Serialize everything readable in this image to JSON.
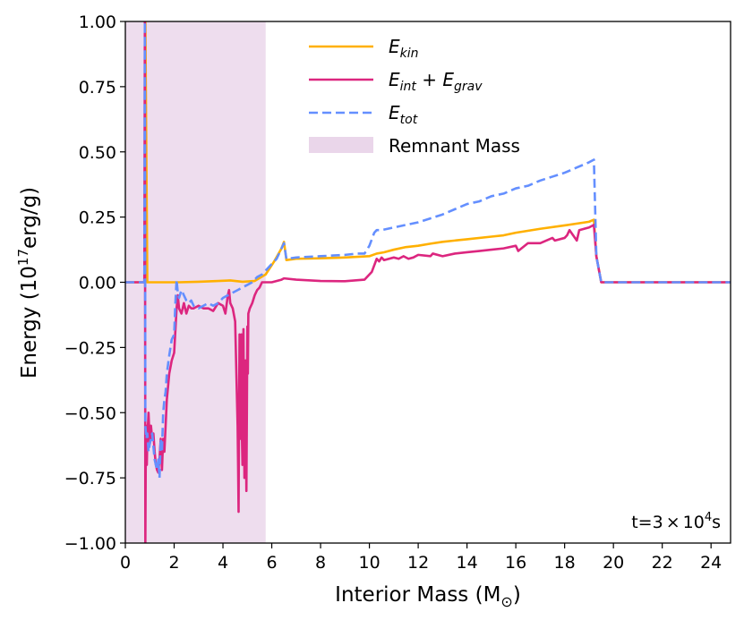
{
  "chart_data": {
    "type": "line",
    "title": "",
    "xlabel_main": "Interior Mass (M",
    "xlabel_sub": "⊙",
    "xlabel_end": ")",
    "ylabel_main": "Energy (10",
    "ylabel_sup": "17",
    "ylabel_end": "erg/g)",
    "xlim": [
      0,
      24.8
    ],
    "ylim": [
      -1.0,
      1.0
    ],
    "xticks": [
      0,
      2,
      4,
      6,
      8,
      10,
      12,
      14,
      16,
      18,
      20,
      22,
      24
    ],
    "xtick_labels": [
      "0",
      "2",
      "4",
      "6",
      "8",
      "10",
      "12",
      "14",
      "16",
      "18",
      "20",
      "22",
      "24"
    ],
    "yticks": [
      -1.0,
      -0.75,
      -0.5,
      -0.25,
      0.0,
      0.25,
      0.5,
      0.75,
      1.0
    ],
    "ytick_labels": [
      "−1.00",
      "−0.75",
      "−0.50",
      "−0.25",
      "0.00",
      "0.25",
      "0.50",
      "0.75",
      "1.00"
    ],
    "shaded_region": {
      "name": "Remnant Mass",
      "x": [
        0,
        5.75
      ],
      "color": "#e8d2e8"
    },
    "annotation": {
      "prefix": "t=3",
      "times": "×",
      "base": "10",
      "sup": "4",
      "unit": "s"
    },
    "legend": [
      {
        "key": "ekin",
        "label": "E",
        "sub": "kin",
        "suffix": "",
        "sub2": "",
        "style": "solid",
        "color": "#ffb000"
      },
      {
        "key": "eintgrav",
        "label": "E",
        "sub": "int",
        "suffix": " + E",
        "sub2": "grav",
        "style": "solid",
        "color": "#dc267f"
      },
      {
        "key": "etot",
        "label": "E",
        "sub": "tot",
        "suffix": "",
        "sub2": "",
        "style": "dashed",
        "color": "#648fff"
      },
      {
        "key": "remnant",
        "label": "Remnant Mass",
        "sub": "",
        "suffix": "",
        "sub2": "",
        "style": "patch",
        "color": "#e8d2e8"
      }
    ],
    "series": [
      {
        "name": "E_kin",
        "color": "#ffb000",
        "dash": false,
        "x": [
          0.0,
          0.78,
          0.82,
          0.9,
          1.5,
          2.2,
          3.0,
          3.8,
          4.3,
          4.8,
          5.3,
          5.75,
          6.1,
          6.4,
          6.5,
          6.6,
          7.0,
          8.0,
          9.0,
          10.0,
          10.3,
          10.6,
          11.0,
          11.5,
          12.0,
          12.5,
          13.0,
          14.0,
          15.0,
          15.5,
          16.0,
          17.0,
          18.0,
          19.0,
          19.2,
          19.3,
          19.5,
          20.0,
          24.8
        ],
        "y": [
          0.0,
          0.0,
          1.0,
          0.0,
          0.0,
          0.0,
          0.002,
          0.005,
          0.007,
          0.002,
          0.005,
          0.03,
          0.08,
          0.13,
          0.155,
          0.085,
          0.09,
          0.092,
          0.095,
          0.1,
          0.11,
          0.115,
          0.125,
          0.135,
          0.14,
          0.148,
          0.155,
          0.165,
          0.175,
          0.18,
          0.19,
          0.205,
          0.218,
          0.232,
          0.24,
          0.1,
          0.0,
          0.0,
          0.0
        ]
      },
      {
        "name": "E_int + E_grav",
        "color": "#dc267f",
        "dash": false,
        "x": [
          0.0,
          0.78,
          0.8,
          0.82,
          0.84,
          0.86,
          0.88,
          0.9,
          0.95,
          1.0,
          1.05,
          1.1,
          1.15,
          1.2,
          1.25,
          1.3,
          1.35,
          1.4,
          1.45,
          1.5,
          1.55,
          1.6,
          1.65,
          1.7,
          1.75,
          1.8,
          1.9,
          2.0,
          2.1,
          2.15,
          2.2,
          2.3,
          2.4,
          2.5,
          2.6,
          2.7,
          2.8,
          3.0,
          3.2,
          3.4,
          3.6,
          3.8,
          4.0,
          4.1,
          4.2,
          4.25,
          4.3,
          4.4,
          4.5,
          4.55,
          4.6,
          4.62,
          4.64,
          4.66,
          4.68,
          4.7,
          4.72,
          4.74,
          4.76,
          4.78,
          4.8,
          4.82,
          4.84,
          4.86,
          4.88,
          4.9,
          4.92,
          4.94,
          4.96,
          4.98,
          5.0,
          5.02,
          5.04,
          5.1,
          5.2,
          5.3,
          5.4,
          5.5,
          5.6,
          5.7,
          5.8,
          6.0,
          6.4,
          6.5,
          7.0,
          8.0,
          9.0,
          9.8,
          10.1,
          10.3,
          10.4,
          10.5,
          10.6,
          11.0,
          11.2,
          11.4,
          11.6,
          11.8,
          12.0,
          12.5,
          12.6,
          13.0,
          13.5,
          14.0,
          14.5,
          15.0,
          15.5,
          16.0,
          16.1,
          16.5,
          17.0,
          17.5,
          17.6,
          18.0,
          18.1,
          18.2,
          18.5,
          18.6,
          19.0,
          19.2,
          19.3,
          19.5,
          20.0,
          24.8
        ],
        "y": [
          0.0,
          0.0,
          1.0,
          -1.0,
          -0.6,
          -0.55,
          -0.7,
          -0.6,
          -0.5,
          -0.62,
          -0.55,
          -0.6,
          -0.58,
          -0.65,
          -0.7,
          -0.72,
          -0.73,
          -0.68,
          -0.6,
          -0.72,
          -0.6,
          -0.65,
          -0.55,
          -0.45,
          -0.4,
          -0.35,
          -0.3,
          -0.27,
          -0.1,
          -0.05,
          -0.1,
          -0.12,
          -0.08,
          -0.12,
          -0.09,
          -0.1,
          -0.1,
          -0.09,
          -0.1,
          -0.1,
          -0.11,
          -0.08,
          -0.09,
          -0.12,
          -0.05,
          -0.03,
          -0.08,
          -0.1,
          -0.15,
          -0.35,
          -0.55,
          -0.7,
          -0.88,
          -0.5,
          -0.2,
          -0.4,
          -0.6,
          -0.35,
          -0.2,
          -0.6,
          -0.7,
          -0.4,
          -0.18,
          -0.5,
          -0.75,
          -0.6,
          -0.3,
          -0.55,
          -0.8,
          -0.5,
          -0.17,
          -0.35,
          -0.12,
          -0.1,
          -0.08,
          -0.05,
          -0.03,
          -0.02,
          0.0,
          0.0,
          0.0,
          0.0,
          0.01,
          0.015,
          0.01,
          0.005,
          0.004,
          0.01,
          0.04,
          0.09,
          0.08,
          0.095,
          0.085,
          0.095,
          0.09,
          0.1,
          0.09,
          0.095,
          0.105,
          0.1,
          0.11,
          0.1,
          0.11,
          0.115,
          0.12,
          0.125,
          0.13,
          0.14,
          0.12,
          0.15,
          0.15,
          0.17,
          0.16,
          0.17,
          0.18,
          0.2,
          0.16,
          0.2,
          0.21,
          0.22,
          0.1,
          0.0,
          0.0,
          0.0
        ]
      },
      {
        "name": "E_tot",
        "color": "#648fff",
        "dash": true,
        "x": [
          0.0,
          0.78,
          0.8,
          0.82,
          0.86,
          0.9,
          0.95,
          1.0,
          1.05,
          1.1,
          1.2,
          1.3,
          1.35,
          1.4,
          1.45,
          1.5,
          1.55,
          1.6,
          1.65,
          1.7,
          1.8,
          1.9,
          2.0,
          2.05,
          2.1,
          2.15,
          2.2,
          2.3,
          2.4,
          2.5,
          2.6,
          2.7,
          2.8,
          3.0,
          3.2,
          3.4,
          3.6,
          3.8,
          4.0,
          4.2,
          4.4,
          4.6,
          4.8,
          5.0,
          5.2,
          5.4,
          5.6,
          5.8,
          6.0,
          6.2,
          6.4,
          6.5,
          6.6,
          7.0,
          8.0,
          9.0,
          9.5,
          9.8,
          10.0,
          10.2,
          10.3,
          10.5,
          11.0,
          11.5,
          12.0,
          12.5,
          13.0,
          13.5,
          14.0,
          14.5,
          15.0,
          15.5,
          16.0,
          16.5,
          17.0,
          17.5,
          18.0,
          18.5,
          19.0,
          19.2,
          19.3,
          19.5,
          20.0,
          24.8
        ],
        "y": [
          0.0,
          0.0,
          1.0,
          -0.55,
          -0.6,
          -0.58,
          -0.65,
          -0.62,
          -0.6,
          -0.58,
          -0.68,
          -0.72,
          -0.68,
          -0.75,
          -0.6,
          -0.65,
          -0.5,
          -0.45,
          -0.42,
          -0.35,
          -0.28,
          -0.22,
          -0.2,
          -0.08,
          0.01,
          -0.04,
          -0.06,
          -0.03,
          -0.05,
          -0.07,
          -0.08,
          -0.07,
          -0.09,
          -0.1,
          -0.09,
          -0.08,
          -0.09,
          -0.08,
          -0.06,
          -0.05,
          -0.04,
          -0.03,
          -0.02,
          -0.01,
          0.0,
          0.02,
          0.03,
          0.05,
          0.07,
          0.09,
          0.13,
          0.15,
          0.09,
          0.095,
          0.1,
          0.105,
          0.11,
          0.11,
          0.14,
          0.19,
          0.2,
          0.2,
          0.21,
          0.22,
          0.23,
          0.245,
          0.26,
          0.28,
          0.3,
          0.31,
          0.33,
          0.34,
          0.36,
          0.37,
          0.39,
          0.405,
          0.42,
          0.44,
          0.46,
          0.47,
          0.1,
          0.0,
          0.0,
          0.0
        ]
      }
    ]
  }
}
